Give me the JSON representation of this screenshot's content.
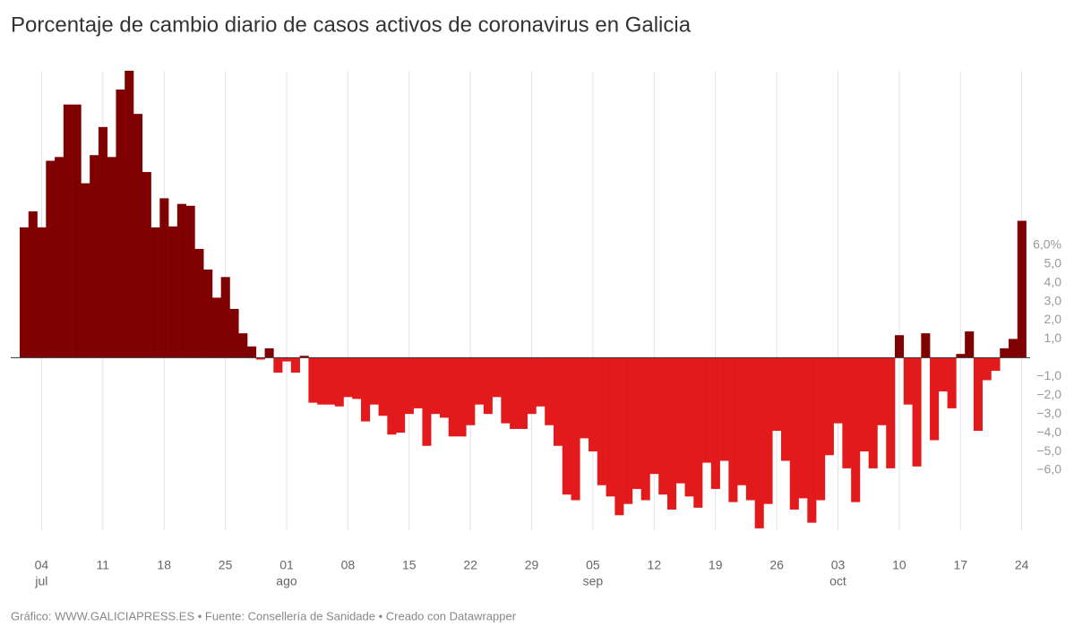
{
  "chart_data": {
    "type": "bar",
    "title": "Porcentaje de cambio diario de casos activos de coronavirus en Galicia",
    "source": "Gráfico: WWW.GALICIAPRESS.ES • Fuente: Consellería de Sanidade • Creado con Datawrapper",
    "positive_color": "#7f0000",
    "negative_color": "#e31a1c",
    "categories": [
      null,
      null,
      "04",
      null,
      null,
      null,
      null,
      null,
      null,
      "11",
      null,
      null,
      null,
      null,
      null,
      null,
      "18",
      null,
      null,
      null,
      null,
      null,
      null,
      "25",
      null,
      null,
      null,
      null,
      null,
      null,
      "01",
      null,
      null,
      null,
      null,
      null,
      null,
      "08",
      null,
      null,
      null,
      null,
      null,
      null,
      "15",
      null,
      null,
      null,
      null,
      null,
      null,
      "22",
      null,
      null,
      null,
      null,
      null,
      null,
      "29",
      null,
      null,
      null,
      null,
      null,
      null,
      "05",
      null,
      null,
      null,
      null,
      null,
      null,
      "12",
      null,
      null,
      null,
      null,
      null,
      null,
      "19",
      null,
      null,
      null,
      null,
      null,
      null,
      "26",
      null,
      null,
      null,
      null,
      null,
      null,
      "03",
      null,
      null,
      null,
      null,
      null,
      null,
      "10",
      null,
      null,
      null,
      null,
      null,
      null,
      "17",
      null,
      null,
      null,
      null,
      null,
      null,
      "24"
    ],
    "month_categories": [
      null,
      null,
      "jul",
      null,
      null,
      null,
      null,
      null,
      null,
      null,
      null,
      null,
      null,
      null,
      null,
      null,
      null,
      null,
      null,
      null,
      null,
      null,
      null,
      null,
      null,
      null,
      null,
      null,
      null,
      null,
      "ago",
      null,
      null,
      null,
      null,
      null,
      null,
      null,
      null,
      null,
      null,
      null,
      null,
      null,
      null,
      null,
      null,
      null,
      null,
      null,
      null,
      null,
      null,
      null,
      null,
      null,
      null,
      null,
      null,
      null,
      null,
      null,
      null,
      null,
      null,
      "sep",
      null,
      null,
      null,
      null,
      null,
      null,
      null,
      null,
      null,
      null,
      null,
      null,
      null,
      null,
      null,
      null,
      null,
      null,
      null,
      null,
      null,
      null,
      null,
      null,
      null,
      null,
      null,
      "oct",
      null,
      null,
      null,
      null,
      null,
      null,
      null,
      null,
      null,
      null,
      null,
      null,
      null,
      null,
      null,
      null,
      null,
      null,
      null,
      null,
      null
    ],
    "values": [
      6.95,
      7.8,
      6.95,
      10.5,
      10.7,
      13.5,
      13.5,
      9.3,
      10.8,
      12.3,
      10.7,
      14.3,
      15.3,
      13.0,
      9.9,
      6.95,
      8.5,
      7.0,
      8.2,
      8.1,
      5.8,
      4.7,
      3.2,
      4.3,
      2.6,
      1.3,
      0.6,
      -0.1,
      0.5,
      -0.8,
      -0.2,
      -0.8,
      0.1,
      -2.4,
      -2.5,
      -2.5,
      -2.6,
      -2.1,
      -2.2,
      -3.4,
      -2.5,
      -3.1,
      -4.1,
      -4.0,
      -3.0,
      -2.7,
      -4.7,
      -3.0,
      -3.2,
      -4.2,
      -4.2,
      -3.6,
      -2.5,
      -3.0,
      -2.1,
      -3.5,
      -3.8,
      -3.8,
      -3.0,
      -2.6,
      -3.6,
      -4.7,
      -7.3,
      -7.6,
      -4.3,
      -5.0,
      -6.8,
      -7.4,
      -8.4,
      -7.8,
      -7.0,
      -7.6,
      -6.2,
      -7.3,
      -8.1,
      -6.7,
      -7.4,
      -8.0,
      -5.6,
      -7.0,
      -5.5,
      -7.7,
      -6.8,
      -7.6,
      -9.1,
      -7.8,
      -3.9,
      -5.5,
      -8.1,
      -7.5,
      -8.8,
      -7.6,
      -5.2,
      -3.5,
      -5.9,
      -7.7,
      -5.0,
      -5.9,
      -3.6,
      -5.9,
      1.2,
      -2.5,
      -5.8,
      1.3,
      -4.4,
      -1.8,
      -2.7,
      0.2,
      1.4,
      -3.9,
      -1.2,
      -0.7,
      0.5,
      1.0,
      7.3
    ],
    "ylim": [
      -9.2,
      15.3
    ],
    "yticks": [
      {
        "value": 6,
        "label": "6,0%"
      },
      {
        "value": 5,
        "label": "5,0"
      },
      {
        "value": 4,
        "label": "4,0"
      },
      {
        "value": 3,
        "label": "3,0"
      },
      {
        "value": 2,
        "label": "2,0"
      },
      {
        "value": 1,
        "label": "1,0"
      },
      {
        "value": -1,
        "label": "−1,0"
      },
      {
        "value": -2,
        "label": "−2,0"
      },
      {
        "value": -3,
        "label": "−3,0"
      },
      {
        "value": -4,
        "label": "−4,0"
      },
      {
        "value": -5,
        "label": "−5,0"
      },
      {
        "value": -6,
        "label": "−6,0"
      }
    ],
    "grid": true
  }
}
